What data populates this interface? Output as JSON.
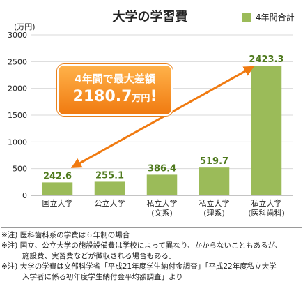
{
  "chart_data": {
    "type": "bar",
    "title": "大学の学習費",
    "ylabel": "(万円)",
    "ylim": [
      0,
      3000
    ],
    "yticks": [
      0,
      500,
      1000,
      1500,
      2000,
      2500,
      3000
    ],
    "grid": true,
    "legend_position": "top-right",
    "series": [
      {
        "name": "4年間合計",
        "color": "#9bbb59",
        "values": [
          242.6,
          255.1,
          386.4,
          519.7,
          2423.3
        ]
      }
    ],
    "categories": [
      [
        "国立大学"
      ],
      [
        "公立大学"
      ],
      [
        "私立大学",
        "(文系)"
      ],
      [
        "私立大学",
        "(理系)"
      ],
      [
        "私立大学",
        "(医科歯科)"
      ]
    ],
    "data_labels": [
      "242.6",
      "255.1",
      "386.4",
      "519.7",
      "2423.3"
    ],
    "annotation": {
      "line1": "4年間で最大差額",
      "value": "2180.7",
      "unit": "万円",
      "suffix": "!"
    }
  },
  "notes": [
    {
      "text": "※注) 医科歯科系の学費は６年制の場合"
    },
    {
      "text": "※注) 国立、公立大学の施設設備費は学校によって異なり、かからないこともあるが、",
      "cont": "施設費、実習費などが徴収される場合もある。"
    },
    {
      "text": "※注) 大学の学費は文部科学省「平成21年度学生納付金調査」「平成22年度私立大学",
      "cont": "入学者に係る初年度学生納付金平均額調査」より"
    }
  ],
  "colors": {
    "bar": "#9bbb59",
    "label": "#4f7a1e",
    "arrow": "#f07a10",
    "callout": "#f39325"
  }
}
